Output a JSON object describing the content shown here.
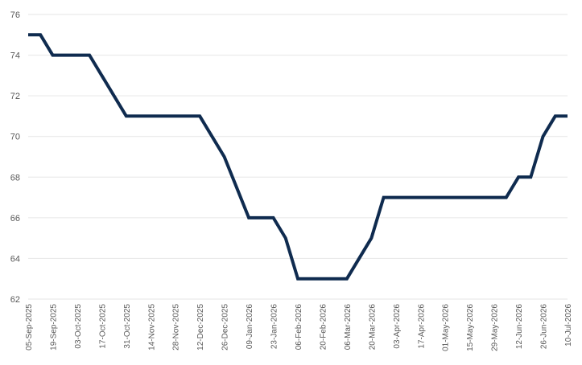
{
  "chart_data": {
    "type": "line",
    "title": "",
    "xlabel": "",
    "ylabel": "",
    "ylim": [
      62,
      76
    ],
    "y_ticks": [
      62,
      64,
      66,
      68,
      70,
      72,
      74,
      76
    ],
    "grid": "horizontal",
    "legend": "none",
    "x_tick_labels": [
      "05-Sep-2025",
      "19-Sep-2025",
      "03-Oct-2025",
      "17-Oct-2025",
      "31-Oct-2025",
      "14-Nov-2025",
      "28-Nov-2025",
      "12-Dec-2025",
      "26-Dec-2025",
      "09-Jan-2026",
      "23-Jan-2026",
      "06-Feb-2026",
      "20-Feb-2026",
      "06-Mar-2026",
      "20-Mar-2026",
      "03-Apr-2026",
      "17-Apr-2026",
      "01-May-2026",
      "15-May-2026",
      "29-May-2026",
      "12-Jun-2026",
      "26-Jun-2026",
      "10-Jul-2026"
    ],
    "x_tick_dates": [
      "2025-09-05",
      "2025-09-19",
      "2025-10-03",
      "2025-10-17",
      "2025-10-31",
      "2025-11-14",
      "2025-11-28",
      "2025-12-12",
      "2025-12-26",
      "2026-01-09",
      "2026-01-23",
      "2026-02-06",
      "2026-02-20",
      "2026-03-06",
      "2026-03-20",
      "2026-04-03",
      "2026-04-17",
      "2026-05-01",
      "2026-05-15",
      "2026-05-29",
      "2026-06-12",
      "2026-06-26",
      "2026-07-10"
    ],
    "series": [
      {
        "color": "#0f2b4f",
        "points": [
          {
            "x": "2025-09-05",
            "y": 75
          },
          {
            "x": "2025-09-12",
            "y": 75
          },
          {
            "x": "2025-09-19",
            "y": 74
          },
          {
            "x": "2025-10-10",
            "y": 74
          },
          {
            "x": "2025-10-31",
            "y": 71
          },
          {
            "x": "2025-12-12",
            "y": 71
          },
          {
            "x": "2025-12-26",
            "y": 69
          },
          {
            "x": "2026-01-09",
            "y": 66
          },
          {
            "x": "2026-01-23",
            "y": 66
          },
          {
            "x": "2026-01-30",
            "y": 65
          },
          {
            "x": "2026-02-06",
            "y": 63
          },
          {
            "x": "2026-03-06",
            "y": 63
          },
          {
            "x": "2026-03-20",
            "y": 65
          },
          {
            "x": "2026-03-27",
            "y": 67
          },
          {
            "x": "2026-06-05",
            "y": 67
          },
          {
            "x": "2026-06-12",
            "y": 68
          },
          {
            "x": "2026-06-19",
            "y": 68
          },
          {
            "x": "2026-06-26",
            "y": 70
          },
          {
            "x": "2026-07-03",
            "y": 71
          },
          {
            "x": "2026-07-10",
            "y": 71
          }
        ]
      }
    ]
  }
}
